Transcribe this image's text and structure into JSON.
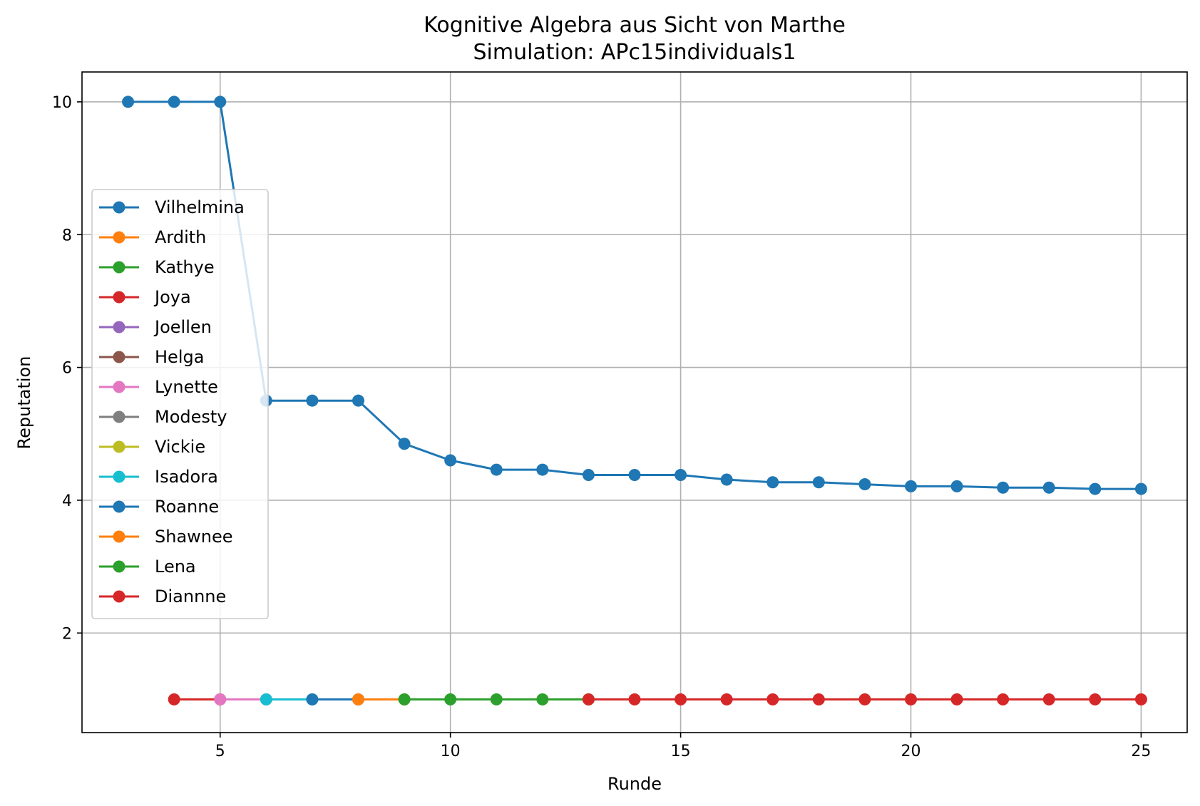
{
  "chart_data": {
    "type": "line",
    "title": "Kognitive Algebra aus Sicht von Marthe",
    "subtitle": "Simulation: APc15individuals1",
    "xlabel": "Runde",
    "ylabel": "Reputation",
    "xlim": [
      2,
      26
    ],
    "ylim": [
      0.5,
      10.45
    ],
    "xticks": [
      5,
      10,
      15,
      20,
      25
    ],
    "yticks": [
      2,
      4,
      6,
      8,
      10
    ],
    "grid": true,
    "legend_position": "center-left",
    "series": [
      {
        "name": "Vilhelmina",
        "color": "#1f77b4",
        "x": [
          3,
          4,
          5,
          6,
          7,
          8,
          9,
          10,
          11,
          12,
          13,
          14,
          15,
          16,
          17,
          18,
          19,
          20,
          21,
          22,
          23,
          24,
          25
        ],
        "y": [
          10,
          10,
          10,
          5.5,
          5.5,
          5.5,
          4.85,
          4.6,
          4.46,
          4.46,
          4.38,
          4.38,
          4.38,
          4.31,
          4.27,
          4.27,
          4.24,
          4.21,
          4.21,
          4.19,
          4.19,
          4.17,
          4.17
        ]
      },
      {
        "name": "Ardith",
        "color": "#ff7f0e",
        "x": [],
        "y": []
      },
      {
        "name": "Kathye",
        "color": "#2ca02c",
        "x": [],
        "y": []
      },
      {
        "name": "Joya",
        "color": "#d62728",
        "x": [
          4,
          5
        ],
        "y": [
          1,
          1
        ]
      },
      {
        "name": "Joellen",
        "color": "#9467bd",
        "x": [],
        "y": []
      },
      {
        "name": "Helga",
        "color": "#8c564b",
        "x": [],
        "y": []
      },
      {
        "name": "Lynette",
        "color": "#e377c2",
        "x": [
          5,
          6
        ],
        "y": [
          1,
          1
        ]
      },
      {
        "name": "Modesty",
        "color": "#7f7f7f",
        "x": [],
        "y": []
      },
      {
        "name": "Vickie",
        "color": "#bcbd22",
        "x": [],
        "y": []
      },
      {
        "name": "Isadora",
        "color": "#17becf",
        "x": [
          6,
          7
        ],
        "y": [
          1,
          1
        ]
      },
      {
        "name": "Roanne",
        "color": "#1f77b4",
        "x": [
          7,
          8
        ],
        "y": [
          1,
          1
        ]
      },
      {
        "name": "Shawnee",
        "color": "#ff7f0e",
        "x": [
          8,
          9
        ],
        "y": [
          1,
          1
        ]
      },
      {
        "name": "Lena",
        "color": "#2ca02c",
        "x": [
          9,
          10,
          11,
          12,
          13
        ],
        "y": [
          1,
          1,
          1,
          1,
          1
        ]
      },
      {
        "name": "Diannne",
        "color": "#d62728",
        "x": [
          13,
          14,
          15,
          16,
          17,
          18,
          19,
          20,
          21,
          22,
          23,
          24,
          25
        ],
        "y": [
          1,
          1,
          1,
          1,
          1,
          1,
          1,
          1,
          1,
          1,
          1,
          1,
          1
        ]
      }
    ]
  }
}
